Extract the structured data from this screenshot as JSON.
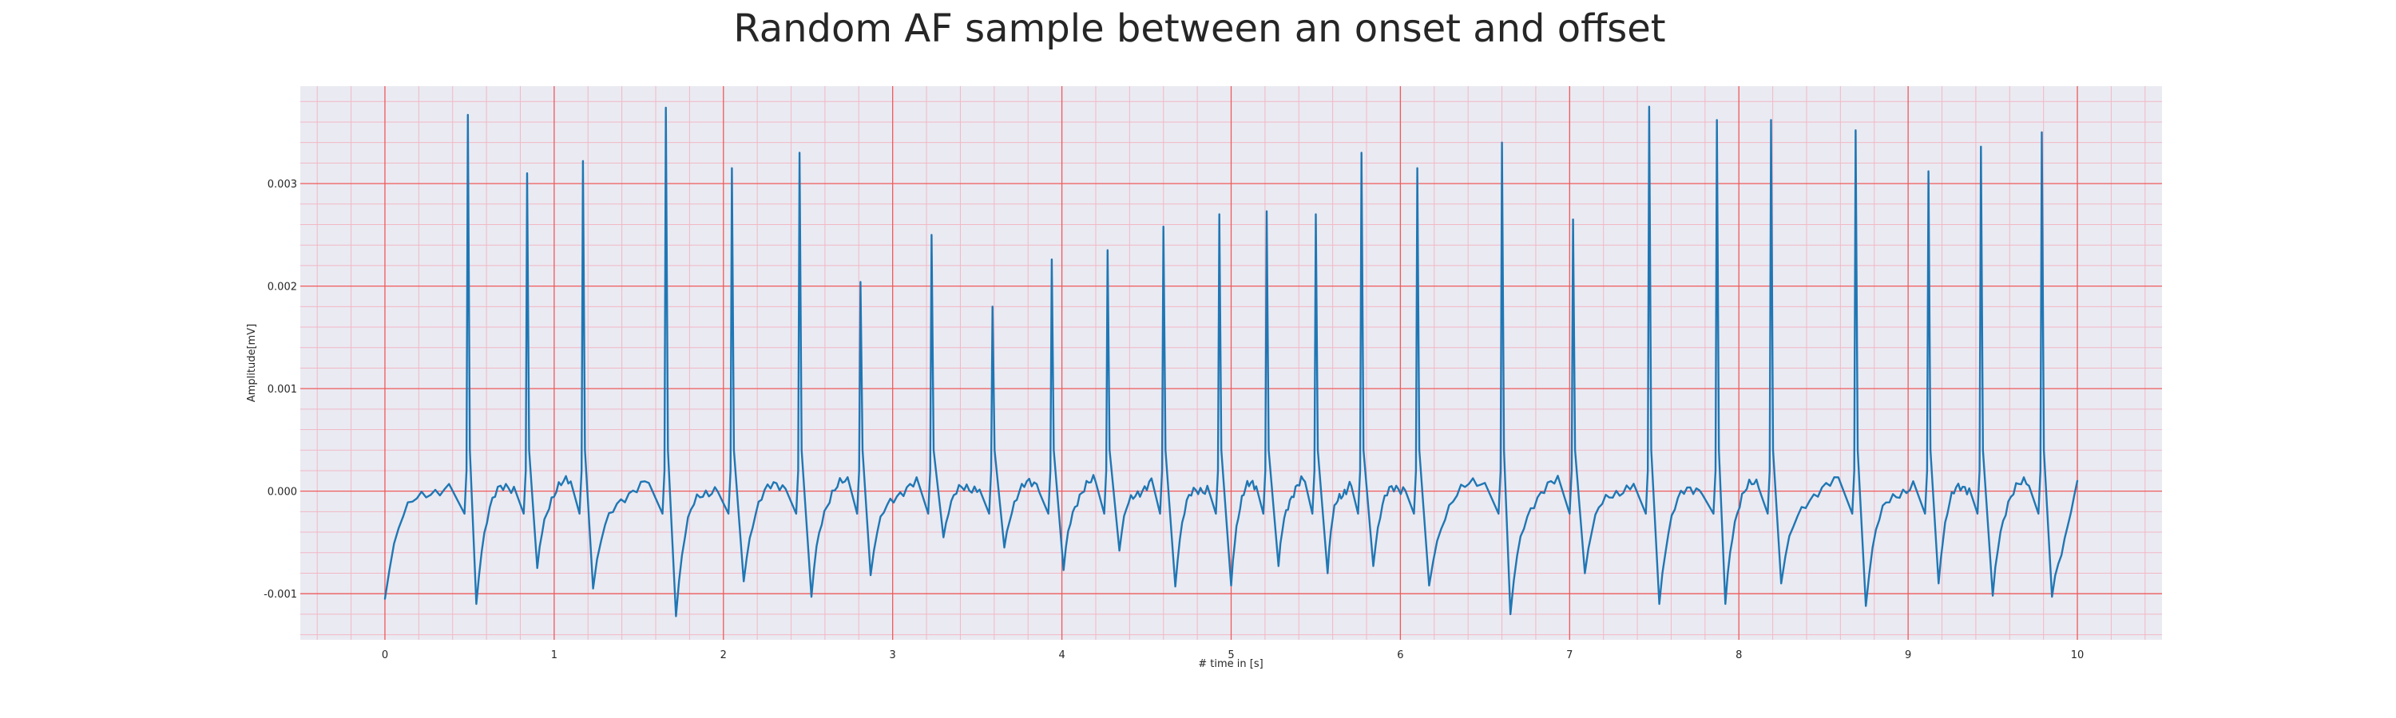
{
  "chart_data": {
    "type": "line",
    "title": "Random AF sample between an onset and offset",
    "xlabel": "# time in [s]",
    "ylabel": "Amplitude[mV]",
    "xlim": [
      -0.5,
      10.5
    ],
    "ylim": [
      -0.00145,
      0.00395
    ],
    "x_ticks": [
      0,
      1,
      2,
      3,
      4,
      5,
      6,
      7,
      8,
      9,
      10
    ],
    "x_tick_labels": [
      "0",
      "1",
      "2",
      "3",
      "4",
      "5",
      "6",
      "7",
      "8",
      "9",
      "10"
    ],
    "y_ticks": [
      -0.001,
      0.0,
      0.001,
      0.002,
      0.003
    ],
    "y_tick_labels": [
      "-0.001",
      "0.000",
      "0.001",
      "0.002",
      "0.003"
    ],
    "grid": true,
    "series": [
      {
        "color": "#1f77b4",
        "r_peaks": [
          {
            "t": 0.49,
            "amp": 0.00367
          },
          {
            "t": 0.84,
            "amp": 0.0031
          },
          {
            "t": 1.17,
            "amp": 0.00322
          },
          {
            "t": 1.66,
            "amp": 0.00374
          },
          {
            "t": 2.05,
            "amp": 0.00315
          },
          {
            "t": 2.45,
            "amp": 0.0033
          },
          {
            "t": 2.81,
            "amp": 0.00204
          },
          {
            "t": 3.23,
            "amp": 0.0025
          },
          {
            "t": 3.59,
            "amp": 0.0018
          },
          {
            "t": 3.94,
            "amp": 0.00226
          },
          {
            "t": 4.27,
            "amp": 0.00235
          },
          {
            "t": 4.6,
            "amp": 0.00258
          },
          {
            "t": 4.93,
            "amp": 0.0027
          },
          {
            "t": 5.21,
            "amp": 0.00273
          },
          {
            "t": 5.5,
            "amp": 0.0027
          },
          {
            "t": 5.77,
            "amp": 0.0033
          },
          {
            "t": 6.1,
            "amp": 0.00315
          },
          {
            "t": 6.6,
            "amp": 0.0034
          },
          {
            "t": 7.02,
            "amp": 0.00265
          },
          {
            "t": 7.47,
            "amp": 0.00375
          },
          {
            "t": 7.87,
            "amp": 0.00362
          },
          {
            "t": 8.19,
            "amp": 0.00362
          },
          {
            "t": 8.69,
            "amp": 0.00352
          },
          {
            "t": 9.12,
            "amp": 0.00312
          },
          {
            "t": 9.43,
            "amp": 0.00336
          },
          {
            "t": 9.79,
            "amp": 0.0035
          }
        ],
        "troughs": [
          {
            "t": 0.0,
            "amp": -0.00105
          },
          {
            "t": 0.54,
            "amp": -0.0011
          },
          {
            "t": 0.9,
            "amp": -0.00075
          },
          {
            "t": 1.23,
            "amp": -0.00095
          },
          {
            "t": 1.72,
            "amp": -0.00122
          },
          {
            "t": 2.12,
            "amp": -0.00088
          },
          {
            "t": 2.52,
            "amp": -0.00103
          },
          {
            "t": 2.87,
            "amp": -0.00082
          },
          {
            "t": 3.3,
            "amp": -0.00045
          },
          {
            "t": 3.66,
            "amp": -0.00055
          },
          {
            "t": 4.01,
            "amp": -0.00077
          },
          {
            "t": 4.34,
            "amp": -0.00058
          },
          {
            "t": 4.67,
            "amp": -0.00093
          },
          {
            "t": 5.0,
            "amp": -0.00092
          },
          {
            "t": 5.28,
            "amp": -0.00073
          },
          {
            "t": 5.57,
            "amp": -0.0008
          },
          {
            "t": 5.84,
            "amp": -0.00073
          },
          {
            "t": 6.17,
            "amp": -0.00092
          },
          {
            "t": 6.65,
            "amp": -0.0012
          },
          {
            "t": 7.09,
            "amp": -0.0008
          },
          {
            "t": 7.53,
            "amp": -0.0011
          },
          {
            "t": 7.92,
            "amp": -0.0011
          },
          {
            "t": 8.25,
            "amp": -0.0009
          },
          {
            "t": 8.75,
            "amp": -0.00112
          },
          {
            "t": 9.18,
            "amp": -0.0009
          },
          {
            "t": 9.5,
            "amp": -0.00102
          },
          {
            "t": 9.85,
            "amp": -0.00103
          }
        ],
        "end": {
          "t": 10.0,
          "amp": 0.0001
        }
      }
    ]
  }
}
